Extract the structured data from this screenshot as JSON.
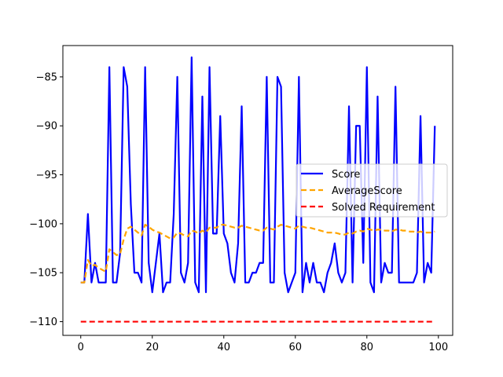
{
  "chart_data": {
    "type": "line",
    "title": "",
    "xlabel": "",
    "ylabel": "",
    "xlim": [
      -5,
      104
    ],
    "ylim": [
      -111.4,
      -81.8
    ],
    "xticks": [
      0,
      20,
      40,
      60,
      80,
      100
    ],
    "yticks": [
      -110,
      -105,
      -100,
      -95,
      -90,
      -85
    ],
    "xtick_labels": [
      "0",
      "20",
      "40",
      "60",
      "80",
      "100"
    ],
    "ytick_labels": [
      "−110",
      "−105",
      "−100",
      "−95",
      "−90",
      "−85"
    ],
    "grid": false,
    "legend_position": "center-right",
    "series": [
      {
        "name": "Score",
        "color": "#0000ff",
        "style": "solid",
        "x": [
          0,
          1,
          2,
          3,
          4,
          5,
          6,
          7,
          8,
          9,
          10,
          11,
          12,
          13,
          14,
          15,
          16,
          17,
          18,
          19,
          20,
          21,
          22,
          23,
          24,
          25,
          26,
          27,
          28,
          29,
          30,
          31,
          32,
          33,
          34,
          35,
          36,
          37,
          38,
          39,
          40,
          41,
          42,
          43,
          44,
          45,
          46,
          47,
          48,
          49,
          50,
          51,
          52,
          53,
          54,
          55,
          56,
          57,
          58,
          59,
          60,
          61,
          62,
          63,
          64,
          65,
          66,
          67,
          68,
          69,
          70,
          71,
          72,
          73,
          74,
          75,
          76,
          77,
          78,
          79,
          80,
          81,
          82,
          83,
          84,
          85,
          86,
          87,
          88,
          89,
          90,
          91,
          92,
          93,
          94,
          95,
          96,
          97,
          98,
          99
        ],
        "values": [
          -106,
          -106,
          -99,
          -106,
          -104,
          -106,
          -106,
          -106,
          -84,
          -106,
          -106,
          -103,
          -84,
          -86,
          -98,
          -105,
          -105,
          -106,
          -84,
          -104,
          -107,
          -104,
          -101,
          -107,
          -106,
          -106,
          -99,
          -85,
          -105,
          -106,
          -104,
          -83,
          -106,
          -107,
          -87,
          -107,
          -84,
          -101,
          -101,
          -89,
          -101,
          -102,
          -105,
          -106,
          -102,
          -88,
          -106,
          -106,
          -105,
          -105,
          -104,
          -104,
          -85,
          -106,
          -106,
          -85,
          -86,
          -105,
          -107,
          -106,
          -105,
          -85,
          -107,
          -104,
          -106,
          -104,
          -106,
          -106,
          -107,
          -105,
          -104,
          -102,
          -105,
          -106,
          -105,
          -88,
          -106,
          -90,
          -90,
          -104,
          -84,
          -106,
          -107,
          -87,
          -106,
          -104,
          -105,
          -105,
          -86,
          -106,
          -106,
          -106,
          -106,
          -106,
          -105,
          -89,
          -106,
          -104,
          -105,
          -90
        ]
      },
      {
        "name": "AverageScore",
        "color": "#ffa500",
        "style": "dashed",
        "x": [
          0,
          1,
          2,
          3,
          4,
          5,
          6,
          7,
          8,
          9,
          10,
          11,
          12,
          13,
          14,
          15,
          16,
          17,
          18,
          19,
          20,
          21,
          22,
          23,
          24,
          25,
          26,
          27,
          28,
          29,
          30,
          31,
          32,
          33,
          34,
          35,
          36,
          37,
          38,
          39,
          40,
          41,
          42,
          43,
          44,
          45,
          46,
          47,
          48,
          49,
          50,
          51,
          52,
          53,
          54,
          55,
          56,
          57,
          58,
          59,
          60,
          61,
          62,
          63,
          64,
          65,
          66,
          67,
          68,
          69,
          70,
          71,
          72,
          73,
          74,
          75,
          76,
          77,
          78,
          79,
          80,
          81,
          82,
          83,
          84,
          85,
          86,
          87,
          88,
          89,
          90,
          91,
          92,
          93,
          94,
          95,
          96,
          97,
          98,
          99
        ],
        "values": [
          -106,
          -106,
          -103.7,
          -104.3,
          -104.2,
          -104.5,
          -104.7,
          -104.9,
          -102.6,
          -102.9,
          -103.2,
          -103.1,
          -101.6,
          -100.5,
          -100.3,
          -100.6,
          -100.9,
          -101.2,
          -100.1,
          -100.3,
          -100.6,
          -100.8,
          -100.9,
          -101.1,
          -101.3,
          -101.5,
          -101.4,
          -100.9,
          -101,
          -101.2,
          -101.3,
          -100.7,
          -100.8,
          -101,
          -100.7,
          -100.9,
          -100.4,
          -100.4,
          -100.4,
          -100.1,
          -100.1,
          -100.2,
          -100.3,
          -100.4,
          -100.4,
          -100.2,
          -100.3,
          -100.4,
          -100.5,
          -100.6,
          -100.7,
          -100.7,
          -100.4,
          -100.5,
          -100.6,
          -100.3,
          -100.1,
          -100.2,
          -100.3,
          -100.4,
          -100.5,
          -100.2,
          -100.3,
          -100.4,
          -100.4,
          -100.5,
          -100.6,
          -100.7,
          -100.8,
          -100.9,
          -100.9,
          -100.9,
          -101,
          -101.1,
          -101.1,
          -100.9,
          -101,
          -100.8,
          -100.7,
          -100.8,
          -100.5,
          -100.6,
          -100.7,
          -100.6,
          -100.6,
          -100.7,
          -100.7,
          -100.8,
          -100.6,
          -100.6,
          -100.7,
          -100.7,
          -100.8,
          -100.8,
          -100.9,
          -100.8,
          -100.9,
          -100.9,
          -100.9,
          -100.8
        ]
      },
      {
        "name": "Solved Requirement",
        "color": "#ff0000",
        "style": "dashed",
        "x": [
          0,
          99
        ],
        "values": [
          -110,
          -110
        ]
      }
    ]
  }
}
